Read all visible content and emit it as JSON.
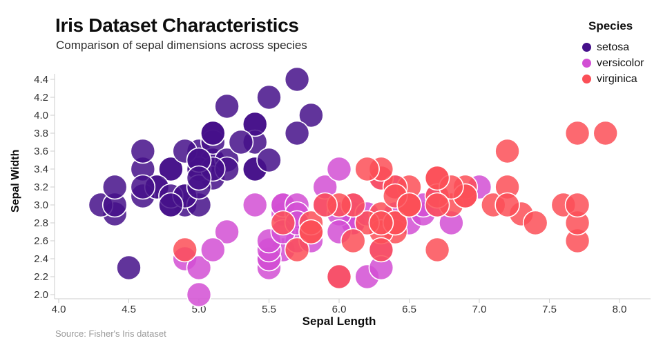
{
  "header": {
    "title": "Iris Dataset Characteristics",
    "subtitle": "Comparison of sepal dimensions across species"
  },
  "source_note": "Source: Fisher's Iris dataset",
  "colors": {
    "setosa": "#45108a",
    "versicolor": "#d24fd4",
    "virginica": "#fb4f57",
    "axis_line": "#cccccc",
    "tick_label": "#333333"
  },
  "chart_data": {
    "type": "scatter",
    "title": "Iris Dataset Characteristics",
    "subtitle": "Comparison of sepal dimensions across species",
    "xlabel": "Sepal Length",
    "ylabel": "Sepal Width",
    "xlim": [
      4.0,
      8.0
    ],
    "ylim": [
      2.0,
      4.4
    ],
    "x_ticks": [
      4.0,
      4.5,
      5.0,
      5.5,
      6.0,
      6.5,
      7.0,
      7.5,
      8.0
    ],
    "y_ticks": [
      2.0,
      2.2,
      2.4,
      2.6,
      2.8,
      3.0,
      3.2,
      3.4,
      3.6,
      3.8,
      4.0,
      4.2,
      4.4
    ],
    "grid": false,
    "legend": {
      "title": "Species",
      "position": "top-right"
    },
    "marker": {
      "radius": 17.5,
      "stroke": "#ffffff",
      "stroke_width": 1.6,
      "opacity": 0.85
    },
    "series": [
      {
        "name": "setosa",
        "color": "#45108a",
        "points": [
          [
            5.1,
            3.5
          ],
          [
            4.9,
            3.0
          ],
          [
            4.7,
            3.2
          ],
          [
            4.6,
            3.1
          ],
          [
            5.0,
            3.6
          ],
          [
            5.4,
            3.9
          ],
          [
            4.6,
            3.4
          ],
          [
            5.0,
            3.4
          ],
          [
            4.4,
            2.9
          ],
          [
            4.9,
            3.1
          ],
          [
            5.4,
            3.7
          ],
          [
            4.8,
            3.4
          ],
          [
            4.8,
            3.0
          ],
          [
            4.3,
            3.0
          ],
          [
            5.8,
            4.0
          ],
          [
            5.7,
            4.4
          ],
          [
            5.4,
            3.9
          ],
          [
            5.1,
            3.5
          ],
          [
            5.7,
            3.8
          ],
          [
            5.1,
            3.8
          ],
          [
            5.4,
            3.4
          ],
          [
            5.1,
            3.7
          ],
          [
            4.6,
            3.6
          ],
          [
            5.1,
            3.3
          ],
          [
            4.8,
            3.4
          ],
          [
            5.0,
            3.0
          ],
          [
            5.0,
            3.4
          ],
          [
            5.2,
            3.5
          ],
          [
            5.2,
            3.4
          ],
          [
            4.7,
            3.2
          ],
          [
            4.8,
            3.1
          ],
          [
            5.4,
            3.4
          ],
          [
            5.2,
            4.1
          ],
          [
            5.5,
            4.2
          ],
          [
            4.9,
            3.1
          ],
          [
            5.0,
            3.2
          ],
          [
            5.5,
            3.5
          ],
          [
            4.9,
            3.6
          ],
          [
            4.4,
            3.0
          ],
          [
            5.1,
            3.4
          ],
          [
            5.0,
            3.5
          ],
          [
            4.5,
            2.3
          ],
          [
            4.4,
            3.2
          ],
          [
            5.0,
            3.5
          ],
          [
            5.1,
            3.8
          ],
          [
            4.8,
            3.0
          ],
          [
            5.1,
            3.8
          ],
          [
            4.6,
            3.2
          ],
          [
            5.3,
            3.7
          ],
          [
            5.0,
            3.3
          ]
        ]
      },
      {
        "name": "versicolor",
        "color": "#d24fd4",
        "points": [
          [
            7.0,
            3.2
          ],
          [
            6.4,
            3.2
          ],
          [
            6.9,
            3.1
          ],
          [
            5.5,
            2.3
          ],
          [
            6.5,
            2.8
          ],
          [
            5.7,
            2.8
          ],
          [
            6.3,
            3.3
          ],
          [
            4.9,
            2.4
          ],
          [
            6.6,
            2.9
          ],
          [
            5.2,
            2.7
          ],
          [
            5.0,
            2.0
          ],
          [
            5.9,
            3.0
          ],
          [
            6.0,
            2.2
          ],
          [
            6.1,
            2.9
          ],
          [
            5.6,
            2.9
          ],
          [
            6.7,
            3.1
          ],
          [
            5.6,
            3.0
          ],
          [
            5.8,
            2.7
          ],
          [
            6.2,
            2.2
          ],
          [
            5.6,
            2.5
          ],
          [
            5.9,
            3.2
          ],
          [
            6.1,
            2.8
          ],
          [
            6.3,
            2.5
          ],
          [
            6.1,
            2.8
          ],
          [
            6.4,
            2.9
          ],
          [
            6.6,
            3.0
          ],
          [
            6.8,
            2.8
          ],
          [
            6.7,
            3.0
          ],
          [
            6.0,
            2.9
          ],
          [
            5.7,
            2.6
          ],
          [
            5.5,
            2.4
          ],
          [
            5.5,
            2.4
          ],
          [
            5.8,
            2.7
          ],
          [
            6.0,
            2.7
          ],
          [
            5.4,
            3.0
          ],
          [
            6.0,
            3.4
          ],
          [
            6.7,
            3.1
          ],
          [
            6.3,
            2.3
          ],
          [
            5.6,
            3.0
          ],
          [
            5.5,
            2.5
          ],
          [
            5.5,
            2.6
          ],
          [
            6.1,
            3.0
          ],
          [
            5.8,
            2.6
          ],
          [
            5.0,
            2.3
          ],
          [
            5.6,
            2.7
          ],
          [
            5.7,
            3.0
          ],
          [
            5.7,
            2.9
          ],
          [
            6.2,
            2.9
          ],
          [
            5.1,
            2.5
          ],
          [
            5.7,
            2.8
          ]
        ]
      },
      {
        "name": "virginica",
        "color": "#fb4f57",
        "points": [
          [
            6.3,
            3.3
          ],
          [
            5.8,
            2.7
          ],
          [
            7.1,
            3.0
          ],
          [
            6.3,
            2.9
          ],
          [
            6.5,
            3.0
          ],
          [
            7.6,
            3.0
          ],
          [
            4.9,
            2.5
          ],
          [
            7.3,
            2.9
          ],
          [
            6.7,
            2.5
          ],
          [
            7.2,
            3.6
          ],
          [
            6.5,
            3.2
          ],
          [
            6.4,
            2.7
          ],
          [
            6.8,
            3.0
          ],
          [
            5.7,
            2.5
          ],
          [
            5.8,
            2.8
          ],
          [
            6.4,
            3.2
          ],
          [
            6.5,
            3.0
          ],
          [
            7.7,
            3.8
          ],
          [
            7.7,
            2.6
          ],
          [
            6.0,
            2.2
          ],
          [
            6.9,
            3.2
          ],
          [
            5.6,
            2.8
          ],
          [
            7.7,
            2.8
          ],
          [
            6.3,
            2.7
          ],
          [
            6.7,
            3.3
          ],
          [
            7.2,
            3.2
          ],
          [
            6.2,
            2.8
          ],
          [
            6.1,
            3.0
          ],
          [
            6.4,
            2.8
          ],
          [
            7.2,
            3.0
          ],
          [
            7.4,
            2.8
          ],
          [
            7.9,
            3.8
          ],
          [
            6.4,
            2.8
          ],
          [
            6.3,
            2.8
          ],
          [
            6.1,
            2.6
          ],
          [
            7.7,
            3.0
          ],
          [
            6.3,
            3.4
          ],
          [
            6.4,
            3.1
          ],
          [
            6.0,
            3.0
          ],
          [
            6.9,
            3.1
          ],
          [
            6.7,
            3.1
          ],
          [
            6.9,
            3.1
          ],
          [
            5.8,
            2.7
          ],
          [
            6.8,
            3.2
          ],
          [
            6.7,
            3.3
          ],
          [
            6.7,
            3.0
          ],
          [
            6.3,
            2.5
          ],
          [
            6.5,
            3.0
          ],
          [
            6.2,
            3.4
          ],
          [
            5.9,
            3.0
          ]
        ]
      }
    ]
  }
}
